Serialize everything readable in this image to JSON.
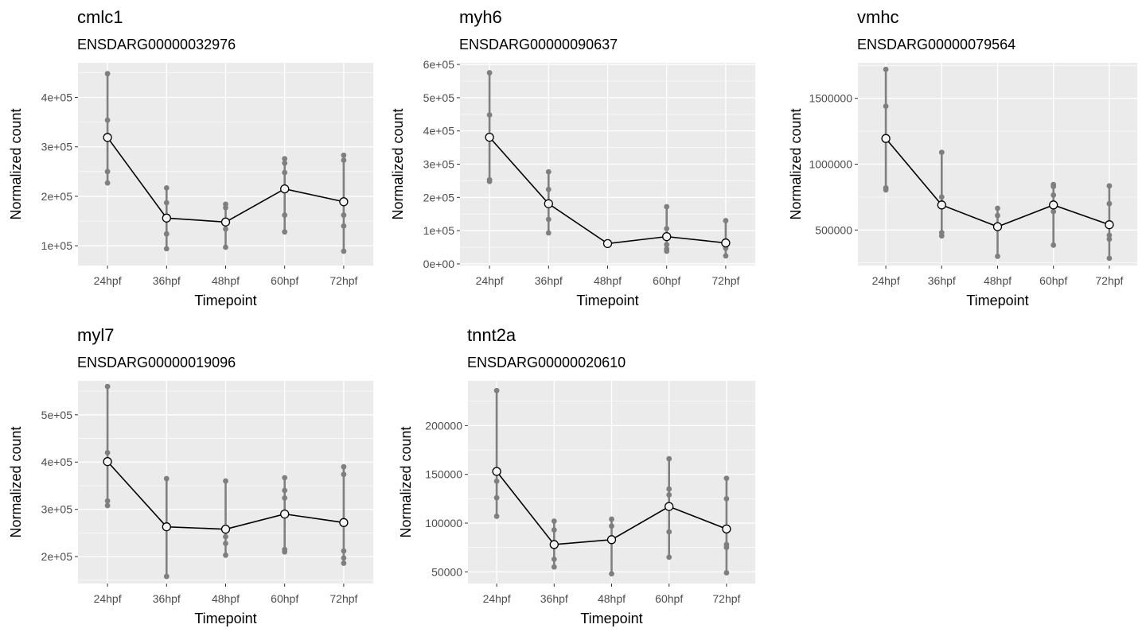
{
  "chart_data": [
    {
      "type": "line",
      "title": "cmlc1",
      "subtitle": "ENSDARG00000032976",
      "xlabel": "Timepoint",
      "ylabel": "Normalized count",
      "categories": [
        "24hpf",
        "36hpf",
        "48hpf",
        "60hpf",
        "72hpf"
      ],
      "ylim": [
        60000,
        470000
      ],
      "yticks": [
        100000,
        200000,
        300000,
        400000
      ],
      "ytick_labels": [
        "1e+05",
        "2e+05",
        "3e+05",
        "4e+05"
      ],
      "replicates": [
        [
          448000,
          354000,
          250000,
          227000
        ],
        [
          217000,
          187000,
          124000,
          94000
        ],
        [
          184000,
          177000,
          134000,
          97000
        ],
        [
          276000,
          267000,
          248000,
          162000,
          128000
        ],
        [
          283000,
          273000,
          162000,
          140000,
          89000
        ]
      ],
      "mean": [
        319000,
        156000,
        148000,
        215000,
        189000
      ],
      "grid": true
    },
    {
      "type": "line",
      "title": "myh6",
      "subtitle": "ENSDARG00000090637",
      "xlabel": "Timepoint",
      "ylabel": "Normalized count",
      "categories": [
        "24hpf",
        "36hpf",
        "48hpf",
        "60hpf",
        "72hpf"
      ],
      "ylim": [
        -5000,
        605000
      ],
      "yticks": [
        0,
        100000,
        200000,
        300000,
        400000,
        500000,
        600000
      ],
      "ytick_labels": [
        "0e+00",
        "1e+05",
        "2e+05",
        "3e+05",
        "4e+05",
        "5e+05",
        "6e+05"
      ],
      "replicates": [
        [
          575000,
          448000,
          253000,
          248000
        ],
        [
          277000,
          224000,
          134000,
          93000
        ],
        [
          61000,
          60000
        ],
        [
          172000,
          106000,
          58000,
          45000,
          38000
        ],
        [
          130000,
          65000,
          47000,
          24000
        ]
      ],
      "mean": [
        381000,
        181000,
        61000,
        82000,
        63000
      ],
      "grid": true
    },
    {
      "type": "line",
      "title": "vmhc",
      "subtitle": "ENSDARG00000079564",
      "xlabel": "Timepoint",
      "ylabel": "Normalized count",
      "categories": [
        "24hpf",
        "36hpf",
        "48hpf",
        "60hpf",
        "72hpf"
      ],
      "ylim": [
        230000,
        1770000
      ],
      "yticks": [
        500000,
        1000000,
        1500000
      ],
      "ytick_labels": [
        "500000",
        "1000000",
        "1500000"
      ],
      "replicates": [
        [
          1720000,
          1440000,
          820000,
          805000
        ],
        [
          1090000,
          750000,
          480000,
          455000
        ],
        [
          665000,
          610000,
          300000
        ],
        [
          845000,
          830000,
          765000,
          640000,
          385000
        ],
        [
          835000,
          700000,
          460000,
          430000,
          285000
        ]
      ],
      "mean": [
        1195000,
        690000,
        525000,
        690000,
        540000
      ],
      "grid": true
    },
    {
      "type": "line",
      "title": "myl7",
      "subtitle": "ENSDARG00000019096",
      "xlabel": "Timepoint",
      "ylabel": "Normalized count",
      "categories": [
        "24hpf",
        "36hpf",
        "48hpf",
        "60hpf",
        "72hpf"
      ],
      "ylim": [
        143000,
        572000
      ],
      "yticks": [
        200000,
        300000,
        400000,
        500000
      ],
      "ytick_labels": [
        "2e+05",
        "3e+05",
        "4e+05",
        "5e+05"
      ],
      "replicates": [
        [
          560000,
          420000,
          318000,
          308000
        ],
        [
          365000,
          158000
        ],
        [
          360000,
          242000,
          228000,
          203000
        ],
        [
          367000,
          340000,
          324000,
          215000,
          210000
        ],
        [
          390000,
          374000,
          212000,
          197000,
          186000
        ]
      ],
      "mean": [
        401000,
        263000,
        258000,
        290000,
        272000
      ],
      "grid": true
    },
    {
      "type": "line",
      "title": "tnnt2a",
      "subtitle": "ENSDARG00000020610",
      "xlabel": "Timepoint",
      "ylabel": "Normalized count",
      "categories": [
        "24hpf",
        "36hpf",
        "48hpf",
        "60hpf",
        "72hpf"
      ],
      "ylim": [
        38000,
        246000
      ],
      "yticks": [
        50000,
        100000,
        150000,
        200000
      ],
      "ytick_labels": [
        "50000",
        "100000",
        "150000",
        "200000"
      ],
      "replicates": [
        [
          236000,
          143000,
          126000,
          107000
        ],
        [
          102000,
          93000,
          63000,
          55000
        ],
        [
          104000,
          97000,
          48000
        ],
        [
          166000,
          135000,
          129000,
          91000,
          65000
        ],
        [
          146000,
          125000,
          78000,
          75000,
          49000
        ]
      ],
      "mean": [
        153000,
        78000,
        83000,
        117000,
        94000
      ],
      "grid": true
    }
  ]
}
